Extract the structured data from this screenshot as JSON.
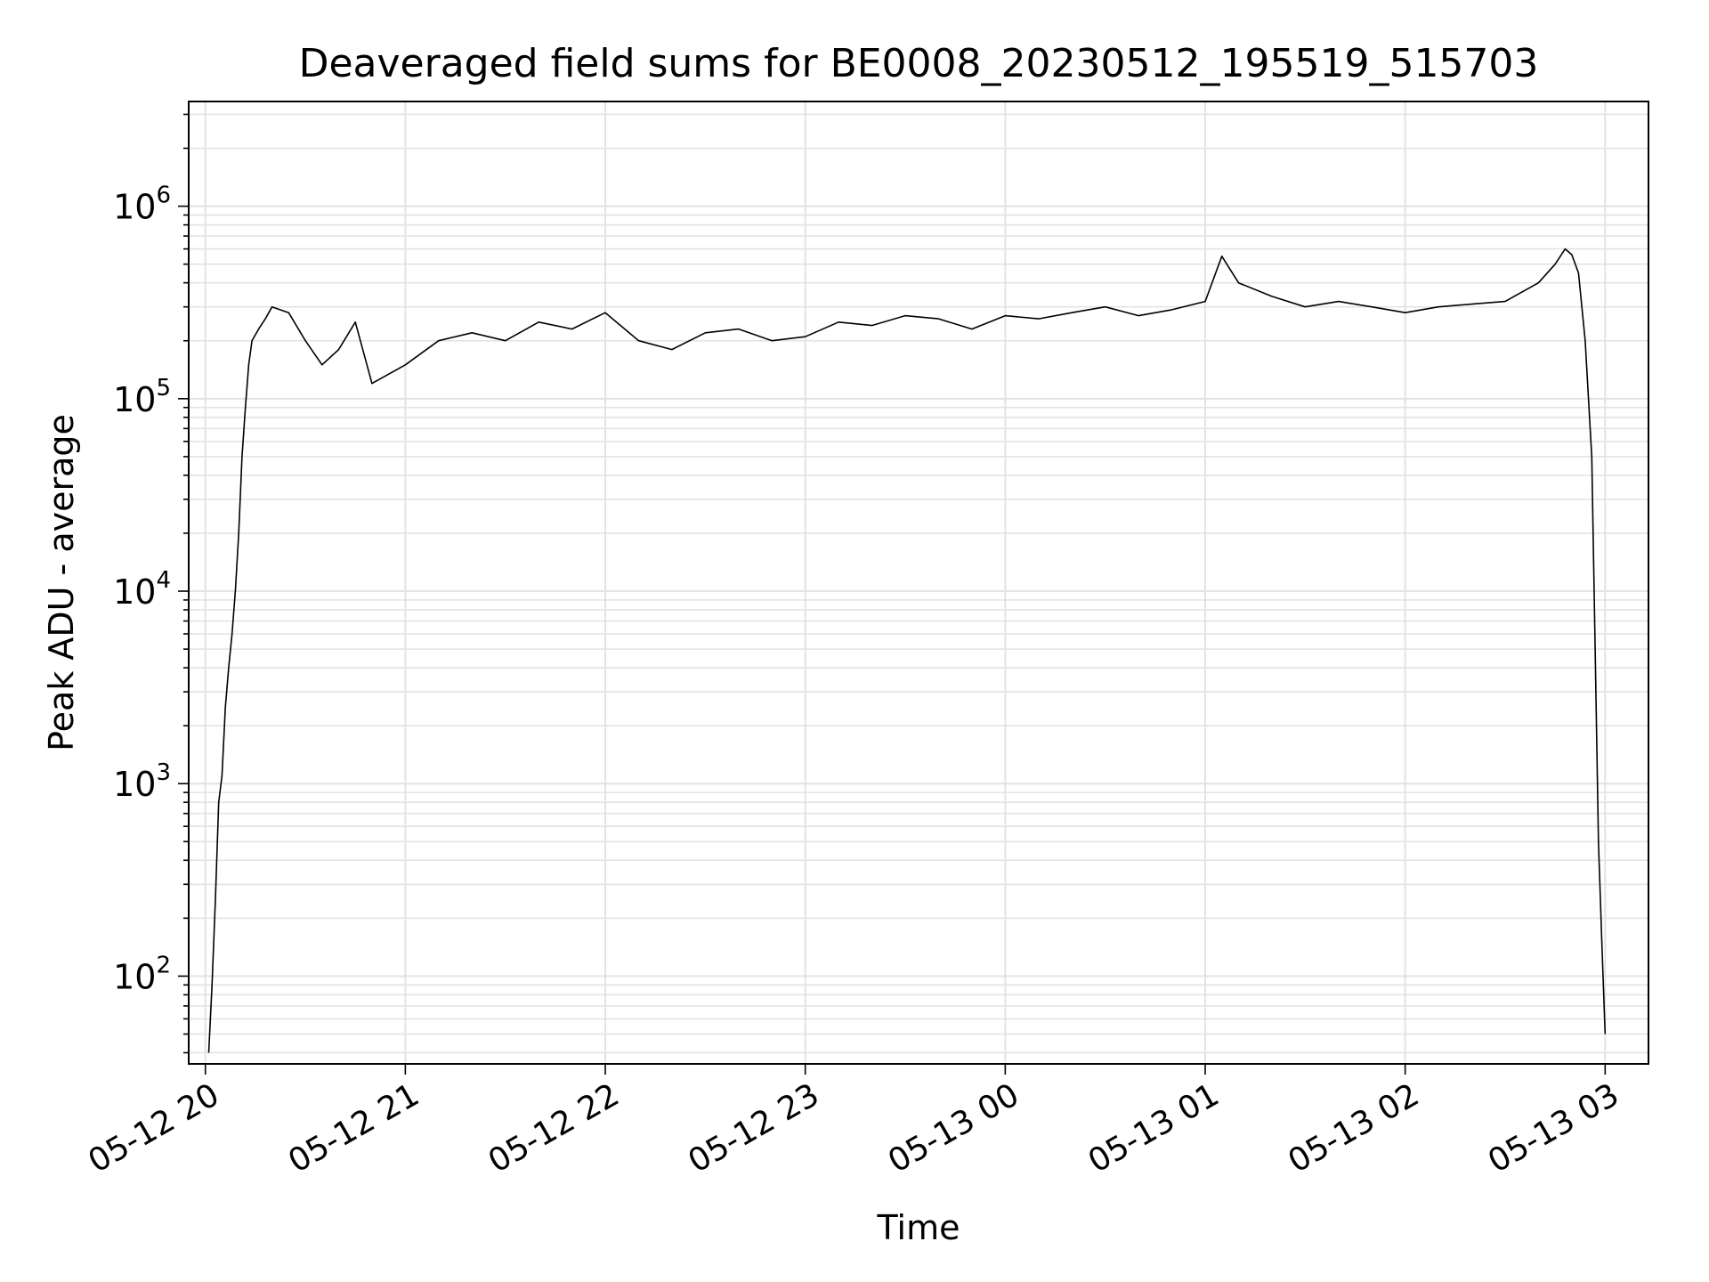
{
  "chart_data": {
    "type": "line",
    "title": "Deaveraged field sums for BE0008_20230512_195519_515703",
    "xlabel": "Time",
    "ylabel": "Peak ADU - average",
    "yscale": "log",
    "ylim": [
      35,
      3500000
    ],
    "xlim": [
      "2023-05-12 19:55",
      "2023-05-13 03:13"
    ],
    "grid": true,
    "line_color": "#000000",
    "x_ticks": [
      {
        "x": "2023-05-12 20:00",
        "label": "05-12 20"
      },
      {
        "x": "2023-05-12 21:00",
        "label": "05-12 21"
      },
      {
        "x": "2023-05-12 22:00",
        "label": "05-12 22"
      },
      {
        "x": "2023-05-12 23:00",
        "label": "05-12 23"
      },
      {
        "x": "2023-05-13 00:00",
        "label": "05-13 00"
      },
      {
        "x": "2023-05-13 01:00",
        "label": "05-13 01"
      },
      {
        "x": "2023-05-13 02:00",
        "label": "05-13 02"
      },
      {
        "x": "2023-05-13 03:00",
        "label": "05-13 03"
      }
    ],
    "y_ticks": [
      {
        "value": 100,
        "base": "10",
        "exp": "2"
      },
      {
        "value": 1000,
        "base": "10",
        "exp": "3"
      },
      {
        "value": 10000,
        "base": "10",
        "exp": "4"
      },
      {
        "value": 100000,
        "base": "10",
        "exp": "5"
      },
      {
        "value": 1000000,
        "base": "10",
        "exp": "6"
      }
    ],
    "series": [
      {
        "x": [
          "2023-05-12 20:01",
          "2023-05-12 20:02",
          "2023-05-12 20:03",
          "2023-05-12 20:04",
          "2023-05-12 20:05",
          "2023-05-12 20:06",
          "2023-05-12 20:07",
          "2023-05-12 20:08",
          "2023-05-12 20:09",
          "2023-05-12 20:10",
          "2023-05-12 20:11",
          "2023-05-12 20:12",
          "2023-05-12 20:13",
          "2023-05-12 20:14",
          "2023-05-12 20:16",
          "2023-05-12 20:18",
          "2023-05-12 20:20",
          "2023-05-12 20:25",
          "2023-05-12 20:30",
          "2023-05-12 20:35",
          "2023-05-12 20:40",
          "2023-05-12 20:45",
          "2023-05-12 20:50",
          "2023-05-12 21:00",
          "2023-05-12 21:10",
          "2023-05-12 21:20",
          "2023-05-12 21:30",
          "2023-05-12 21:40",
          "2023-05-12 21:50",
          "2023-05-12 22:00",
          "2023-05-12 22:10",
          "2023-05-12 22:20",
          "2023-05-12 22:30",
          "2023-05-12 22:40",
          "2023-05-12 22:50",
          "2023-05-12 23:00",
          "2023-05-12 23:10",
          "2023-05-12 23:20",
          "2023-05-12 23:30",
          "2023-05-12 23:40",
          "2023-05-12 23:50",
          "2023-05-13 00:00",
          "2023-05-13 00:10",
          "2023-05-13 00:20",
          "2023-05-13 00:30",
          "2023-05-13 00:40",
          "2023-05-13 00:50",
          "2023-05-13 01:00",
          "2023-05-13 01:05",
          "2023-05-13 01:10",
          "2023-05-13 01:20",
          "2023-05-13 01:30",
          "2023-05-13 01:40",
          "2023-05-13 01:50",
          "2023-05-13 02:00",
          "2023-05-13 02:10",
          "2023-05-13 02:20",
          "2023-05-13 02:30",
          "2023-05-13 02:40",
          "2023-05-13 02:45",
          "2023-05-13 02:48",
          "2023-05-13 02:50",
          "2023-05-13 02:52",
          "2023-05-13 02:54",
          "2023-05-13 02:56",
          "2023-05-13 02:57",
          "2023-05-13 02:58",
          "2023-05-13 02:59",
          "2023-05-13 03:00"
        ],
        "y": [
          40,
          90,
          250,
          800,
          1100,
          2500,
          4000,
          6000,
          10000,
          20000,
          50000,
          90000,
          150000,
          200000,
          230000,
          260000,
          300000,
          280000,
          200000,
          150000,
          180000,
          250000,
          120000,
          150000,
          200000,
          220000,
          200000,
          250000,
          230000,
          280000,
          200000,
          180000,
          220000,
          230000,
          200000,
          210000,
          250000,
          240000,
          270000,
          260000,
          230000,
          270000,
          260000,
          280000,
          300000,
          270000,
          290000,
          320000,
          550000,
          400000,
          340000,
          300000,
          320000,
          300000,
          280000,
          300000,
          310000,
          320000,
          400000,
          500000,
          600000,
          560000,
          450000,
          200000,
          50000,
          5000,
          500,
          150,
          50
        ]
      }
    ]
  }
}
